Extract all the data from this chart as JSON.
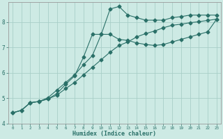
{
  "xlabel": "Humidex (Indice chaleur)",
  "bg_color": "#cdeae4",
  "grid_color": "#a8cfc8",
  "line_color": "#2a7068",
  "xlim": [
    -0.5,
    23.5
  ],
  "ylim": [
    4.0,
    8.8
  ],
  "yticks": [
    4,
    5,
    6,
    7,
    8
  ],
  "xticks": [
    0,
    1,
    2,
    3,
    4,
    5,
    6,
    7,
    8,
    9,
    10,
    11,
    12,
    13,
    14,
    15,
    16,
    17,
    18,
    19,
    20,
    21,
    22,
    23
  ],
  "line1_x": [
    0,
    1,
    2,
    3,
    4,
    5,
    6,
    7,
    8,
    9,
    10,
    11,
    12,
    13,
    14,
    15,
    16,
    17,
    18,
    19,
    20,
    21,
    22,
    23
  ],
  "line1_y": [
    4.42,
    4.52,
    4.82,
    4.87,
    4.97,
    5.12,
    5.38,
    5.62,
    5.92,
    6.22,
    6.52,
    6.82,
    7.08,
    7.22,
    7.42,
    7.55,
    7.65,
    7.78,
    7.88,
    7.92,
    7.98,
    8.02,
    8.07,
    8.12
  ],
  "line2_x": [
    0,
    1,
    2,
    3,
    4,
    5,
    6,
    7,
    8,
    9,
    10,
    11,
    12,
    13,
    14,
    15,
    16,
    17,
    18,
    19,
    20,
    21,
    22,
    23
  ],
  "line2_y": [
    4.42,
    4.52,
    4.82,
    4.87,
    4.97,
    5.18,
    5.55,
    5.88,
    6.62,
    7.52,
    7.52,
    7.52,
    7.32,
    7.28,
    7.18,
    7.12,
    7.08,
    7.12,
    7.22,
    7.32,
    7.42,
    7.52,
    7.62,
    8.12
  ],
  "line3_x": [
    0,
    1,
    2,
    3,
    4,
    5,
    6,
    7,
    8,
    9,
    10,
    11,
    12,
    13,
    14,
    15,
    16,
    17,
    18,
    19,
    20,
    21,
    22,
    23
  ],
  "line3_y": [
    4.42,
    4.52,
    4.82,
    4.87,
    5.02,
    5.32,
    5.62,
    5.92,
    6.32,
    6.68,
    7.52,
    8.52,
    8.62,
    8.28,
    8.18,
    8.08,
    8.08,
    8.08,
    8.18,
    8.22,
    8.28,
    8.28,
    8.28,
    8.28
  ]
}
